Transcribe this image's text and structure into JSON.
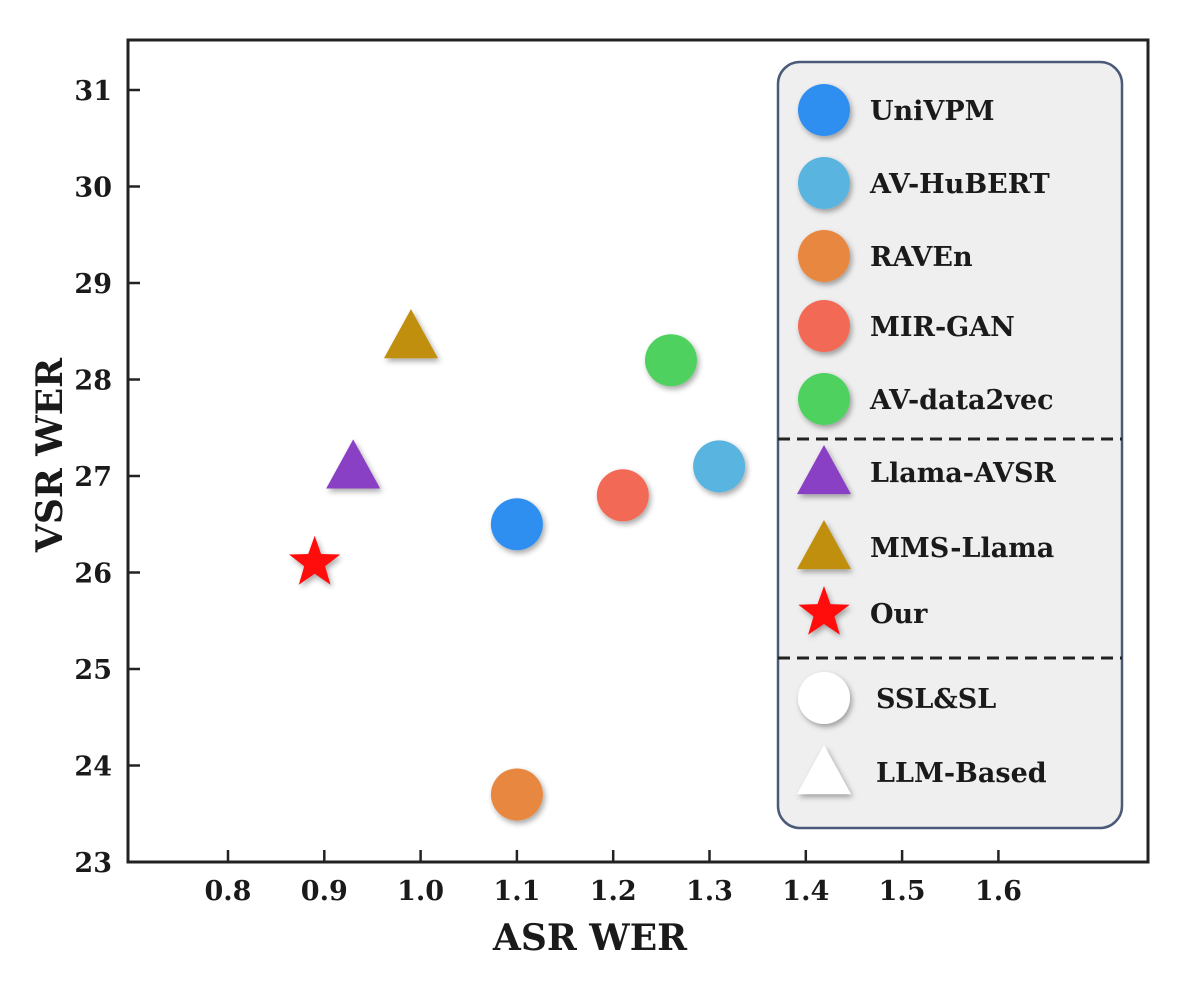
{
  "chart_data": {
    "type": "scatter",
    "xlabel": "ASR WER",
    "ylabel": "VSR WER",
    "xlim": [
      0.7,
      1.85
    ],
    "ylim": [
      23,
      31.5
    ],
    "xticks": [
      "0.8",
      "0.9",
      "1.0",
      "1.1",
      "1.2",
      "1.3",
      "1.4",
      "1.5",
      "1.6"
    ],
    "yticks": [
      "23",
      "24",
      "25",
      "26",
      "27",
      "28",
      "29",
      "30",
      "31"
    ],
    "grid": false,
    "legend_position": "right",
    "series": [
      {
        "name": "UniVPM",
        "marker": "circle",
        "color": "#2f8ff0",
        "x": 1.1,
        "y": 26.5
      },
      {
        "name": "AV-HuBERT",
        "marker": "circle",
        "color": "#5ab4e0",
        "x": 1.31,
        "y": 27.1
      },
      {
        "name": "RAVEn",
        "marker": "circle",
        "color": "#e8873f",
        "x": 1.1,
        "y": 23.7
      },
      {
        "name": "MIR-GAN",
        "marker": "circle",
        "color": "#f26a55",
        "x": 1.21,
        "y": 26.8
      },
      {
        "name": "AV-data2vec",
        "marker": "circle",
        "color": "#4fd160",
        "x": 1.26,
        "y": 28.2
      },
      {
        "name": "Llama-AVSR",
        "marker": "triangle",
        "color": "#8a3fc4",
        "x": 0.93,
        "y": 27.1
      },
      {
        "name": "MMS-Llama",
        "marker": "triangle",
        "color": "#c08f0c",
        "x": 0.99,
        "y": 28.45
      },
      {
        "name": "Our",
        "marker": "star",
        "color": "#ff1010",
        "x": 0.89,
        "y": 26.1
      }
    ],
    "legend_groups": [
      {
        "name": "SSL&SL",
        "marker": "circle"
      },
      {
        "name": "LLM-Based",
        "marker": "triangle"
      }
    ]
  }
}
